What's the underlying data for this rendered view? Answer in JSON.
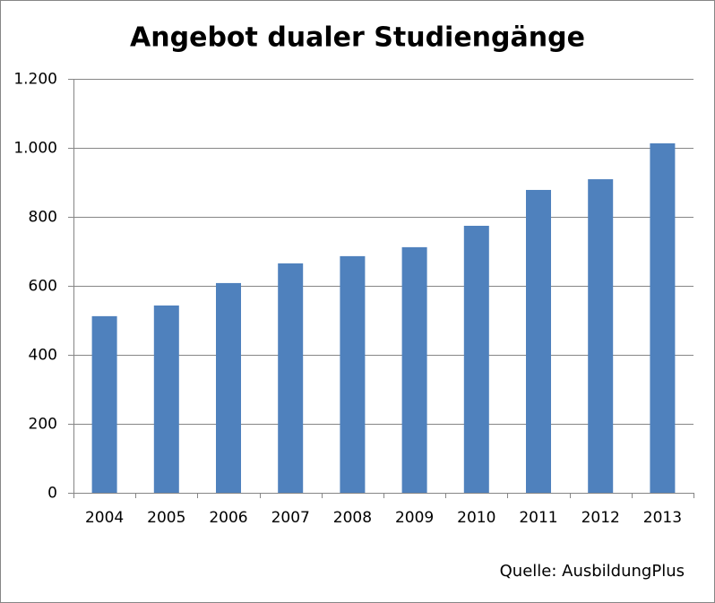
{
  "chart_data": {
    "type": "bar",
    "title": "Angebot dualer Studiengänge",
    "categories": [
      "2004",
      "2005",
      "2006",
      "2007",
      "2008",
      "2009",
      "2010",
      "2011",
      "2012",
      "2013"
    ],
    "values": [
      512,
      543,
      608,
      665,
      686,
      712,
      774,
      878,
      909,
      1013
    ],
    "color": "#4f81bd",
    "ylim": [
      0,
      1200
    ],
    "yticks": [
      0,
      200,
      400,
      600,
      800,
      {
        "value": 1000,
        "label": "1.000"
      },
      {
        "value": 1200,
        "label": "1.200"
      }
    ],
    "grid": true,
    "source": "Quelle: AusbildungPlus"
  }
}
